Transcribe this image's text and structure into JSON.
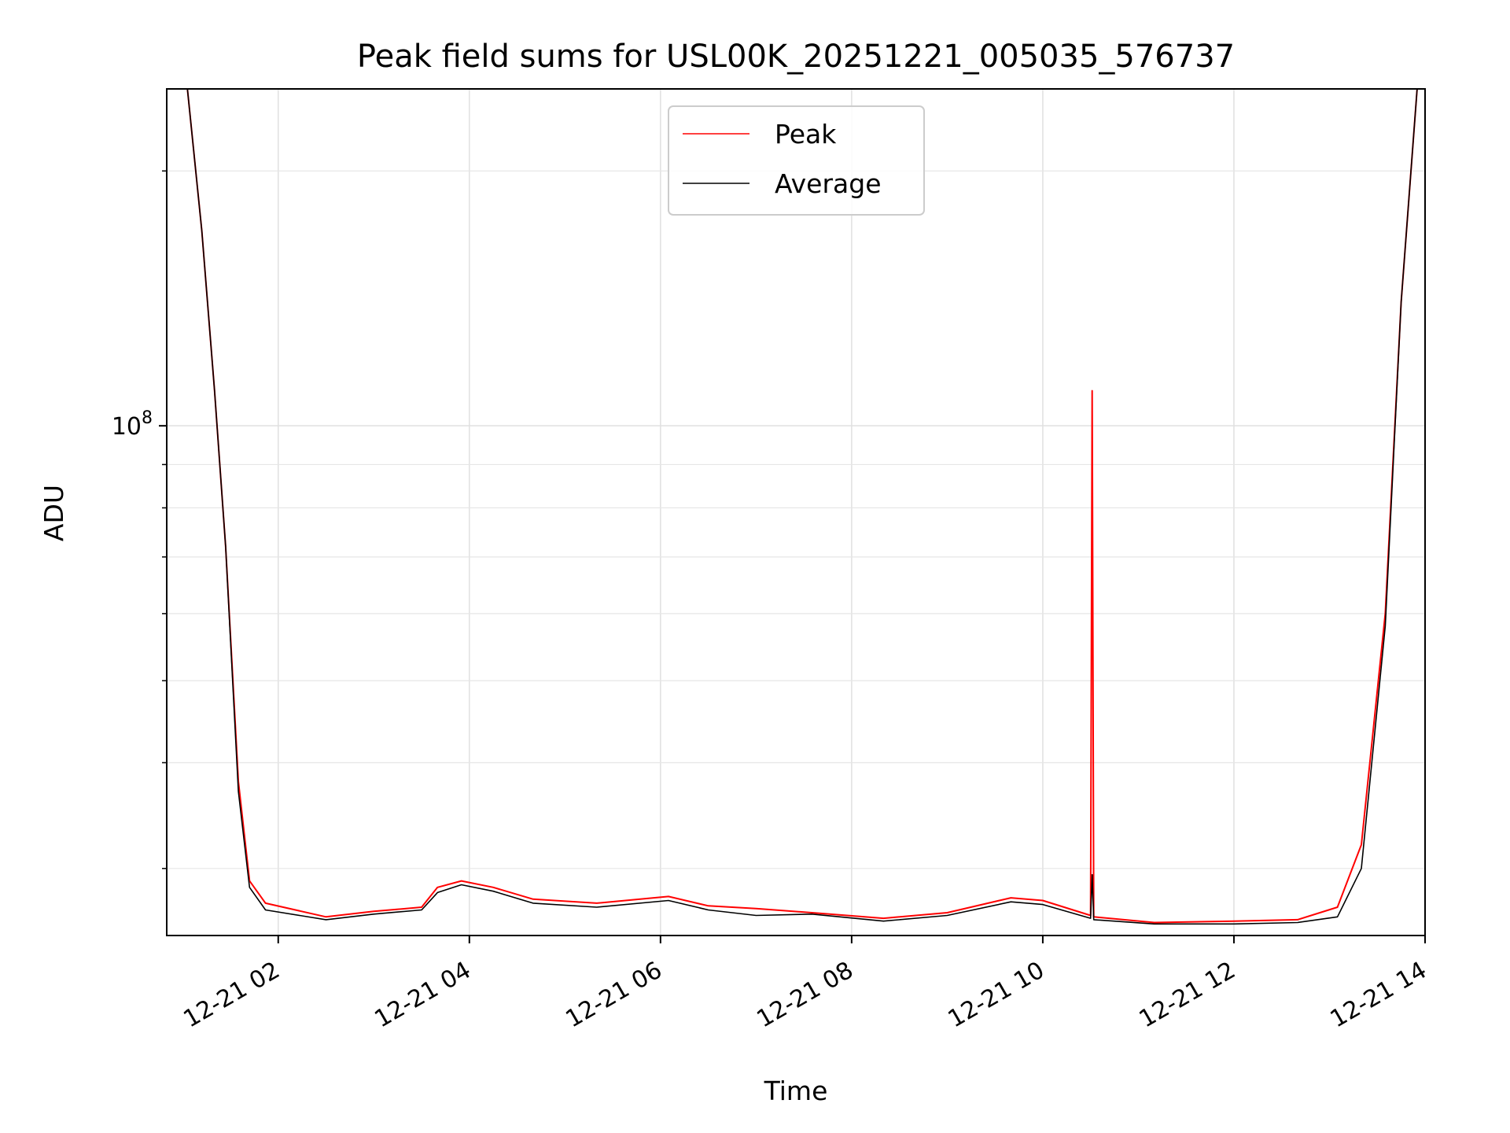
{
  "chart_data": {
    "type": "line",
    "title": "Peak field sums for USL00K_20251221_005035_576737",
    "xlabel": "Time",
    "ylabel": "ADU",
    "x_axis": {
      "type": "datetime",
      "range": [
        "2025-12-21 00:50",
        "2025-12-21 14:00"
      ],
      "tick_values": [
        "2025-12-21 02:00",
        "2025-12-21 04:00",
        "2025-12-21 06:00",
        "2025-12-21 08:00",
        "2025-12-21 10:00",
        "2025-12-21 12:00",
        "2025-12-21 14:00"
      ],
      "tick_labels": [
        "12-21 02",
        "12-21 04",
        "12-21 06",
        "12-21 08",
        "12-21 10",
        "12-21 12",
        "12-21 14"
      ]
    },
    "y_axis": {
      "scale": "log",
      "range": [
        25000000,
        250000000
      ],
      "major_tick_value": 100000000,
      "major_tick_base": "10",
      "major_tick_exponent": "8",
      "minor_tick_values": [
        30000000,
        40000000,
        50000000,
        60000000,
        70000000,
        80000000,
        90000000,
        200000000
      ]
    },
    "grid": true,
    "legend": {
      "placement": "top-center",
      "entries": [
        "Peak",
        "Average"
      ]
    },
    "series": [
      {
        "name": "Peak",
        "color": "#ff0000",
        "points": [
          [
            "2025-12-21 00:50",
            250000000
          ],
          [
            "2025-12-21 01:03",
            250000000
          ],
          [
            "2025-12-21 01:12",
            170000000
          ],
          [
            "2025-12-21 01:20",
            110000000
          ],
          [
            "2025-12-21 01:27",
            72000000
          ],
          [
            "2025-12-21 01:35",
            38000000
          ],
          [
            "2025-12-21 01:42",
            29000000
          ],
          [
            "2025-12-21 01:52",
            27300000
          ],
          [
            "2025-12-21 02:30",
            26300000
          ],
          [
            "2025-12-21 03:00",
            26700000
          ],
          [
            "2025-12-21 03:30",
            27000000
          ],
          [
            "2025-12-21 03:40",
            28500000
          ],
          [
            "2025-12-21 03:55",
            29000000
          ],
          [
            "2025-12-21 04:15",
            28500000
          ],
          [
            "2025-12-21 04:40",
            27600000
          ],
          [
            "2025-12-21 05:20",
            27300000
          ],
          [
            "2025-12-21 06:05",
            27800000
          ],
          [
            "2025-12-21 06:30",
            27100000
          ],
          [
            "2025-12-21 07:00",
            26900000
          ],
          [
            "2025-12-21 07:35",
            26600000
          ],
          [
            "2025-12-21 08:20",
            26200000
          ],
          [
            "2025-12-21 09:00",
            26600000
          ],
          [
            "2025-12-21 09:40",
            27700000
          ],
          [
            "2025-12-21 10:00",
            27500000
          ],
          [
            "2025-12-21 10:30",
            26400000
          ],
          [
            "2025-12-21 10:31",
            110000000
          ],
          [
            "2025-12-21 10:32",
            26300000
          ],
          [
            "2025-12-21 11:10",
            25900000
          ],
          [
            "2025-12-21 12:00",
            26000000
          ],
          [
            "2025-12-21 12:40",
            26100000
          ],
          [
            "2025-12-21 13:05",
            27000000
          ],
          [
            "2025-12-21 13:20",
            32000000
          ],
          [
            "2025-12-21 13:35",
            60000000
          ],
          [
            "2025-12-21 13:45",
            140000000
          ],
          [
            "2025-12-21 13:55",
            250000000
          ],
          [
            "2025-12-21 14:00",
            250000000
          ]
        ]
      },
      {
        "name": "Average",
        "color": "#000000",
        "points": [
          [
            "2025-12-21 00:50",
            250000000
          ],
          [
            "2025-12-21 01:03",
            250000000
          ],
          [
            "2025-12-21 01:12",
            170000000
          ],
          [
            "2025-12-21 01:20",
            110000000
          ],
          [
            "2025-12-21 01:27",
            72000000
          ],
          [
            "2025-12-21 01:35",
            37000000
          ],
          [
            "2025-12-21 01:42",
            28500000
          ],
          [
            "2025-12-21 01:52",
            26800000
          ],
          [
            "2025-12-21 02:30",
            26100000
          ],
          [
            "2025-12-21 03:00",
            26500000
          ],
          [
            "2025-12-21 03:30",
            26800000
          ],
          [
            "2025-12-21 03:40",
            28100000
          ],
          [
            "2025-12-21 03:55",
            28700000
          ],
          [
            "2025-12-21 04:15",
            28200000
          ],
          [
            "2025-12-21 04:40",
            27300000
          ],
          [
            "2025-12-21 05:20",
            27000000
          ],
          [
            "2025-12-21 06:05",
            27500000
          ],
          [
            "2025-12-21 06:30",
            26800000
          ],
          [
            "2025-12-21 07:00",
            26400000
          ],
          [
            "2025-12-21 07:35",
            26500000
          ],
          [
            "2025-12-21 08:20",
            26000000
          ],
          [
            "2025-12-21 09:00",
            26400000
          ],
          [
            "2025-12-21 09:40",
            27400000
          ],
          [
            "2025-12-21 10:00",
            27200000
          ],
          [
            "2025-12-21 10:30",
            26200000
          ],
          [
            "2025-12-21 10:31",
            29500000
          ],
          [
            "2025-12-21 10:32",
            26100000
          ],
          [
            "2025-12-21 11:10",
            25800000
          ],
          [
            "2025-12-21 12:00",
            25800000
          ],
          [
            "2025-12-21 12:40",
            25900000
          ],
          [
            "2025-12-21 13:05",
            26300000
          ],
          [
            "2025-12-21 13:20",
            30000000
          ],
          [
            "2025-12-21 13:35",
            58000000
          ],
          [
            "2025-12-21 13:45",
            140000000
          ],
          [
            "2025-12-21 13:55",
            250000000
          ],
          [
            "2025-12-21 14:00",
            250000000
          ]
        ]
      }
    ]
  }
}
